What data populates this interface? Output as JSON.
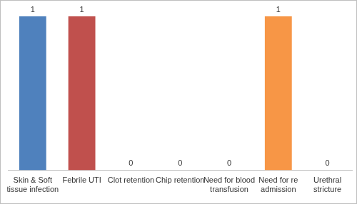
{
  "chart_data": {
    "type": "bar",
    "categories": [
      "Skin & Soft tissue infection",
      "Febrile UTI",
      "Clot retention",
      "Chip retention",
      "Need for blood transfusion",
      "Need for re admission",
      "Urethral stricture"
    ],
    "values": [
      1,
      1,
      0,
      0,
      0,
      1,
      0
    ],
    "colors": [
      "#4f81bd",
      "#c0504d",
      "#9bbb59",
      "#8064a2",
      "#4bacc6",
      "#f79646",
      "#2c4d75"
    ],
    "ylim": [
      0,
      1
    ],
    "data_labels": true,
    "tick_labels": "x",
    "grid": false
  }
}
